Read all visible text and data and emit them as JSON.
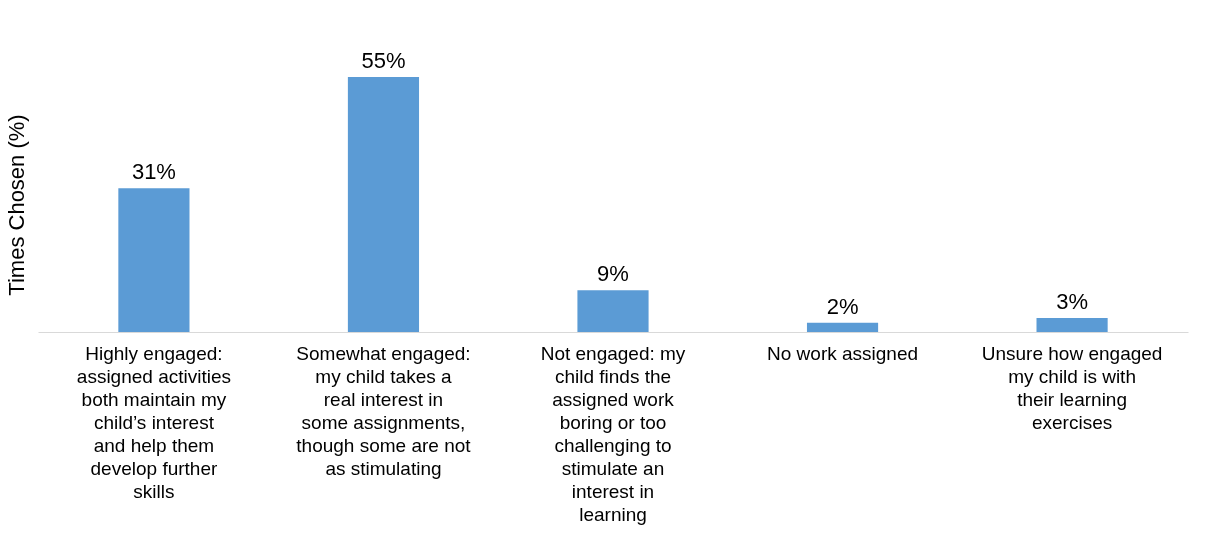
{
  "chart_data": {
    "type": "bar",
    "ylabel": "Times Chosen (%)",
    "categories": [
      "Highly engaged: assigned activities both maintain my child’s interest and help them develop further skills",
      "Somewhat engaged: my child takes a real interest in some assignments, though some are not as stimulating",
      "Not engaged: my child finds the assigned work boring or too challenging to stimulate an interest in learning",
      "No work assigned",
      "Unsure how engaged my child is with their learning exercises"
    ],
    "values": [
      31,
      55,
      9,
      2,
      3
    ],
    "value_labels": [
      "31%",
      "55%",
      "9%",
      "2%",
      "3%"
    ],
    "color": "#5b9bd5",
    "tick_labels": "x"
  }
}
